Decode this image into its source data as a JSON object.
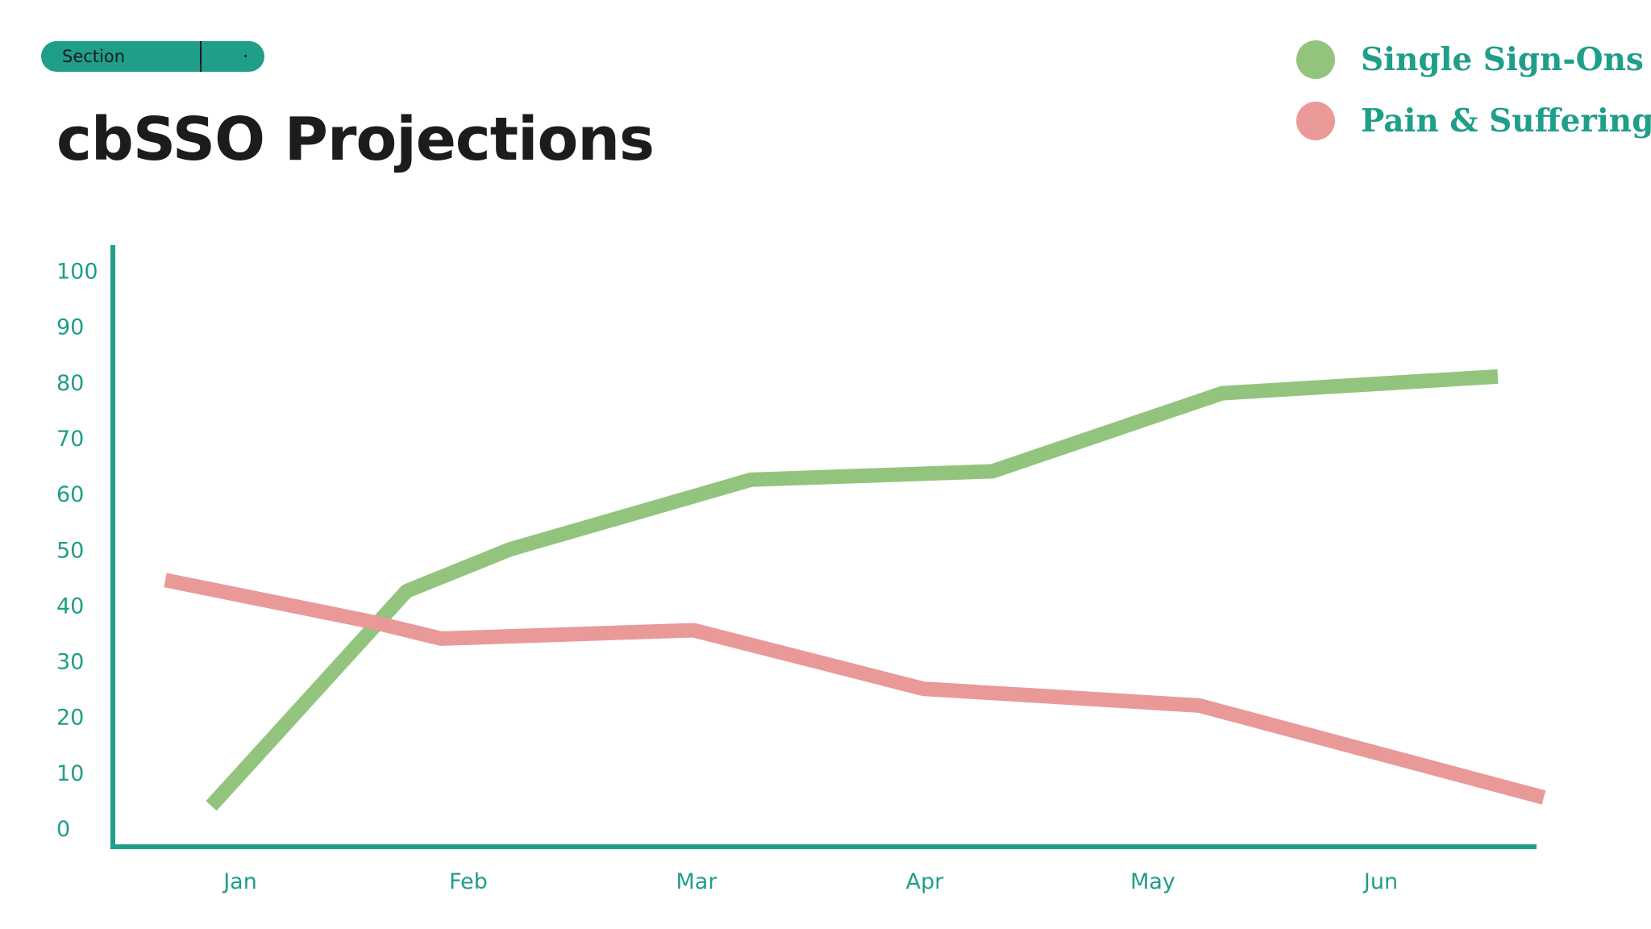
{
  "section_label": "Section",
  "title": "cbSSO Projections",
  "colors": {
    "accent": "#1f9e89",
    "single_sign_ons": "#93c47d",
    "pain_suffering": "#ea9999",
    "title": "#1c1c1c"
  },
  "chart_data": {
    "type": "line",
    "title": "cbSSO Projections",
    "xlabel": "",
    "ylabel": "",
    "categories": [
      "Jan",
      "Feb",
      "Mar",
      "Apr",
      "May",
      "Jun"
    ],
    "yticks": [
      "0",
      "10",
      "20",
      "30",
      "40",
      "50",
      "60",
      "70",
      "80",
      "90",
      "100"
    ],
    "ylim": [
      0,
      100
    ],
    "grid": false,
    "legend_position": "top-right",
    "series": [
      {
        "name": "Single Sign-Ons",
        "color": "#93c47d",
        "x": [
          0.2,
          1.05,
          1.5,
          2.55,
          3.6,
          4.6,
          5.8
        ],
        "values": [
          4,
          42.5,
          50,
          62.5,
          64,
          78,
          81
        ]
      },
      {
        "name": "Pain & Suffering",
        "color": "#ea9999",
        "x": [
          0.0,
          0.9,
          1.2,
          2.3,
          3.3,
          4.5,
          6.0
        ],
        "values": [
          44.5,
          37,
          34,
          35.5,
          25,
          22,
          5.5
        ]
      }
    ]
  }
}
